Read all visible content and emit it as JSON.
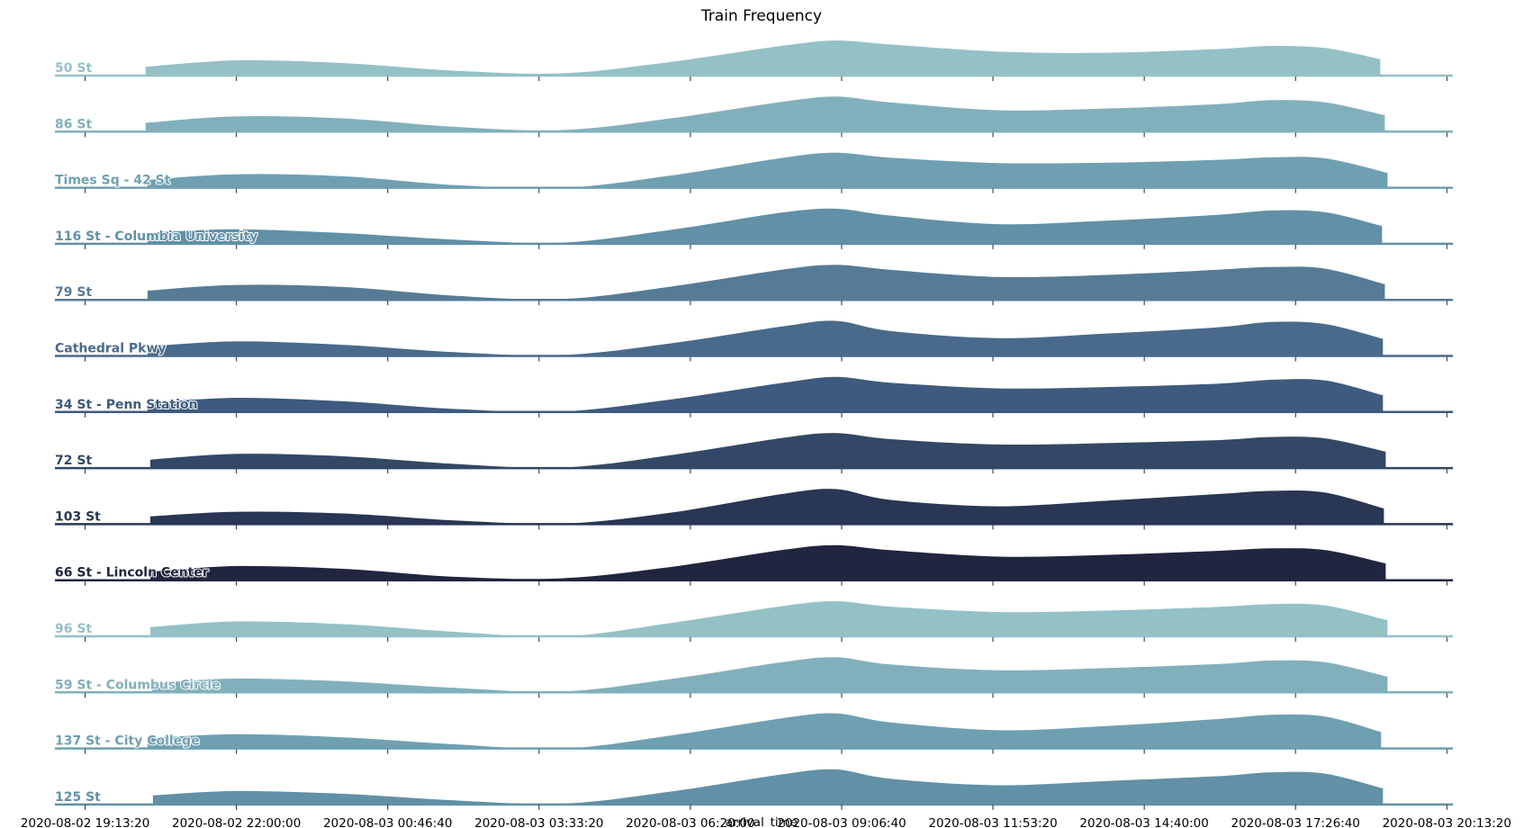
{
  "chart_data": {
    "type": "area",
    "kind": "ridgeline",
    "title": "Train Frequency",
    "xlabel": "arrival_time",
    "ylabel": "",
    "x_ticks": [
      "2020-08-02 19:13:20",
      "2020-08-02 22:00:00",
      "2020-08-03 00:46:40",
      "2020-08-03 03:33:20",
      "2020-08-03 06:20:00",
      "2020-08-03 09:06:40",
      "2020-08-03 11:53:20",
      "2020-08-03 14:40:00",
      "2020-08-03 17:26:40",
      "2020-08-03 20:13:20"
    ],
    "x_range": [
      "2020-08-02 18:40:00",
      "2020-08-03 20:20:00"
    ],
    "grid": false,
    "legend": "none",
    "x_sample_times": [
      "2020-08-02 20:20",
      "2020-08-02 22:00",
      "2020-08-03 00:00",
      "2020-08-03 02:00",
      "2020-08-03 04:00",
      "2020-08-03 06:00",
      "2020-08-03 08:00",
      "2020-08-03 09:00",
      "2020-08-03 10:00",
      "2020-08-03 12:00",
      "2020-08-03 14:00",
      "2020-08-03 16:00",
      "2020-08-03 17:00",
      "2020-08-03 18:00",
      "2020-08-03 19:00"
    ],
    "series": [
      {
        "name": "50 St",
        "color": "#93c1c6",
        "start": "2020-08-02 20:20",
        "end": "2020-08-03 19:00",
        "values": [
          0.27,
          0.45,
          0.37,
          0.16,
          0.09,
          0.41,
          0.85,
          1.0,
          0.89,
          0.69,
          0.66,
          0.76,
          0.85,
          0.79,
          0.48
        ]
      },
      {
        "name": "86 St",
        "color": "#81b0bc",
        "start": "2020-08-02 20:20",
        "end": "2020-08-03 19:05",
        "values": [
          0.27,
          0.45,
          0.39,
          0.16,
          0.07,
          0.4,
          0.85,
          1.0,
          0.84,
          0.62,
          0.67,
          0.79,
          0.9,
          0.84,
          0.48
        ]
      },
      {
        "name": "Times Sq - 42 St",
        "color": "#6ea0b2",
        "start": "2020-08-02 20:22",
        "end": "2020-08-03 19:08",
        "values": [
          0.24,
          0.4,
          0.34,
          0.1,
          0.02,
          0.37,
          0.85,
          1.0,
          0.86,
          0.71,
          0.72,
          0.8,
          0.87,
          0.84,
          0.44
        ]
      },
      {
        "name": "116 St - Columbia University",
        "color": "#6190a7",
        "start": "2020-08-02 20:22",
        "end": "2020-08-03 19:02",
        "values": [
          0.33,
          0.43,
          0.32,
          0.14,
          0.06,
          0.42,
          0.89,
          1.0,
          0.81,
          0.57,
          0.67,
          0.83,
          0.95,
          0.9,
          0.52
        ]
      },
      {
        "name": "79 St",
        "color": "#557b97",
        "start": "2020-08-02 20:22",
        "end": "2020-08-03 19:05",
        "values": [
          0.28,
          0.44,
          0.38,
          0.14,
          0.05,
          0.4,
          0.86,
          1.0,
          0.86,
          0.66,
          0.72,
          0.86,
          0.94,
          0.89,
          0.46
        ]
      },
      {
        "name": "Cathedral Pkwy",
        "color": "#4a6a8b",
        "start": "2020-08-02 20:22",
        "end": "2020-08-03 19:03",
        "values": [
          0.29,
          0.43,
          0.33,
          0.13,
          0.05,
          0.38,
          0.84,
          1.0,
          0.72,
          0.52,
          0.65,
          0.82,
          0.97,
          0.91,
          0.5
        ]
      },
      {
        "name": "34 St - Penn Station",
        "color": "#3e5a7e",
        "start": "2020-08-02 20:22",
        "end": "2020-08-03 19:03",
        "values": [
          0.28,
          0.42,
          0.32,
          0.11,
          0.04,
          0.38,
          0.83,
          1.0,
          0.84,
          0.68,
          0.72,
          0.81,
          0.92,
          0.9,
          0.49
        ]
      },
      {
        "name": "72 St",
        "color": "#334866",
        "start": "2020-08-02 20:25",
        "end": "2020-08-03 19:06",
        "values": [
          0.26,
          0.42,
          0.35,
          0.14,
          0.04,
          0.39,
          0.86,
          1.0,
          0.83,
          0.68,
          0.72,
          0.8,
          0.89,
          0.85,
          0.48
        ]
      },
      {
        "name": "103 St",
        "color": "#293654",
        "start": "2020-08-02 20:25",
        "end": "2020-08-03 19:04",
        "values": [
          0.24,
          0.37,
          0.32,
          0.13,
          0.04,
          0.35,
          0.86,
          1.0,
          0.7,
          0.52,
          0.68,
          0.86,
          0.95,
          0.9,
          0.46
        ]
      },
      {
        "name": "66 St - Lincoln Center",
        "color": "#21253f",
        "start": "2020-08-02 20:25",
        "end": "2020-08-03 19:06",
        "values": [
          0.26,
          0.42,
          0.34,
          0.12,
          0.08,
          0.4,
          0.86,
          1.0,
          0.86,
          0.68,
          0.73,
          0.84,
          0.91,
          0.86,
          0.49
        ]
      },
      {
        "name": "96 St",
        "color": "#93c1c6",
        "start": "2020-08-02 20:25",
        "end": "2020-08-03 19:08",
        "values": [
          0.28,
          0.44,
          0.36,
          0.15,
          0.02,
          0.4,
          0.86,
          1.0,
          0.85,
          0.7,
          0.74,
          0.84,
          0.92,
          0.88,
          0.47
        ]
      },
      {
        "name": "59 St - Columbus Circle",
        "color": "#81b0bc",
        "start": "2020-08-02 20:27",
        "end": "2020-08-03 19:08",
        "values": [
          0.27,
          0.41,
          0.33,
          0.15,
          0.05,
          0.4,
          0.86,
          1.0,
          0.8,
          0.64,
          0.7,
          0.81,
          0.91,
          0.86,
          0.46
        ]
      },
      {
        "name": "137 St - City College",
        "color": "#6ea0b2",
        "start": "2020-08-02 20:22",
        "end": "2020-08-03 19:01",
        "values": [
          0.31,
          0.42,
          0.33,
          0.14,
          0.02,
          0.39,
          0.86,
          1.0,
          0.75,
          0.53,
          0.65,
          0.84,
          0.96,
          0.91,
          0.48
        ]
      },
      {
        "name": "125 St",
        "color": "#6190a7",
        "start": "2020-08-02 20:28",
        "end": "2020-08-03 19:03",
        "values": [
          0.28,
          0.4,
          0.32,
          0.14,
          0.05,
          0.39,
          0.86,
          1.0,
          0.74,
          0.56,
          0.68,
          0.81,
          0.92,
          0.88,
          0.47
        ]
      }
    ]
  }
}
